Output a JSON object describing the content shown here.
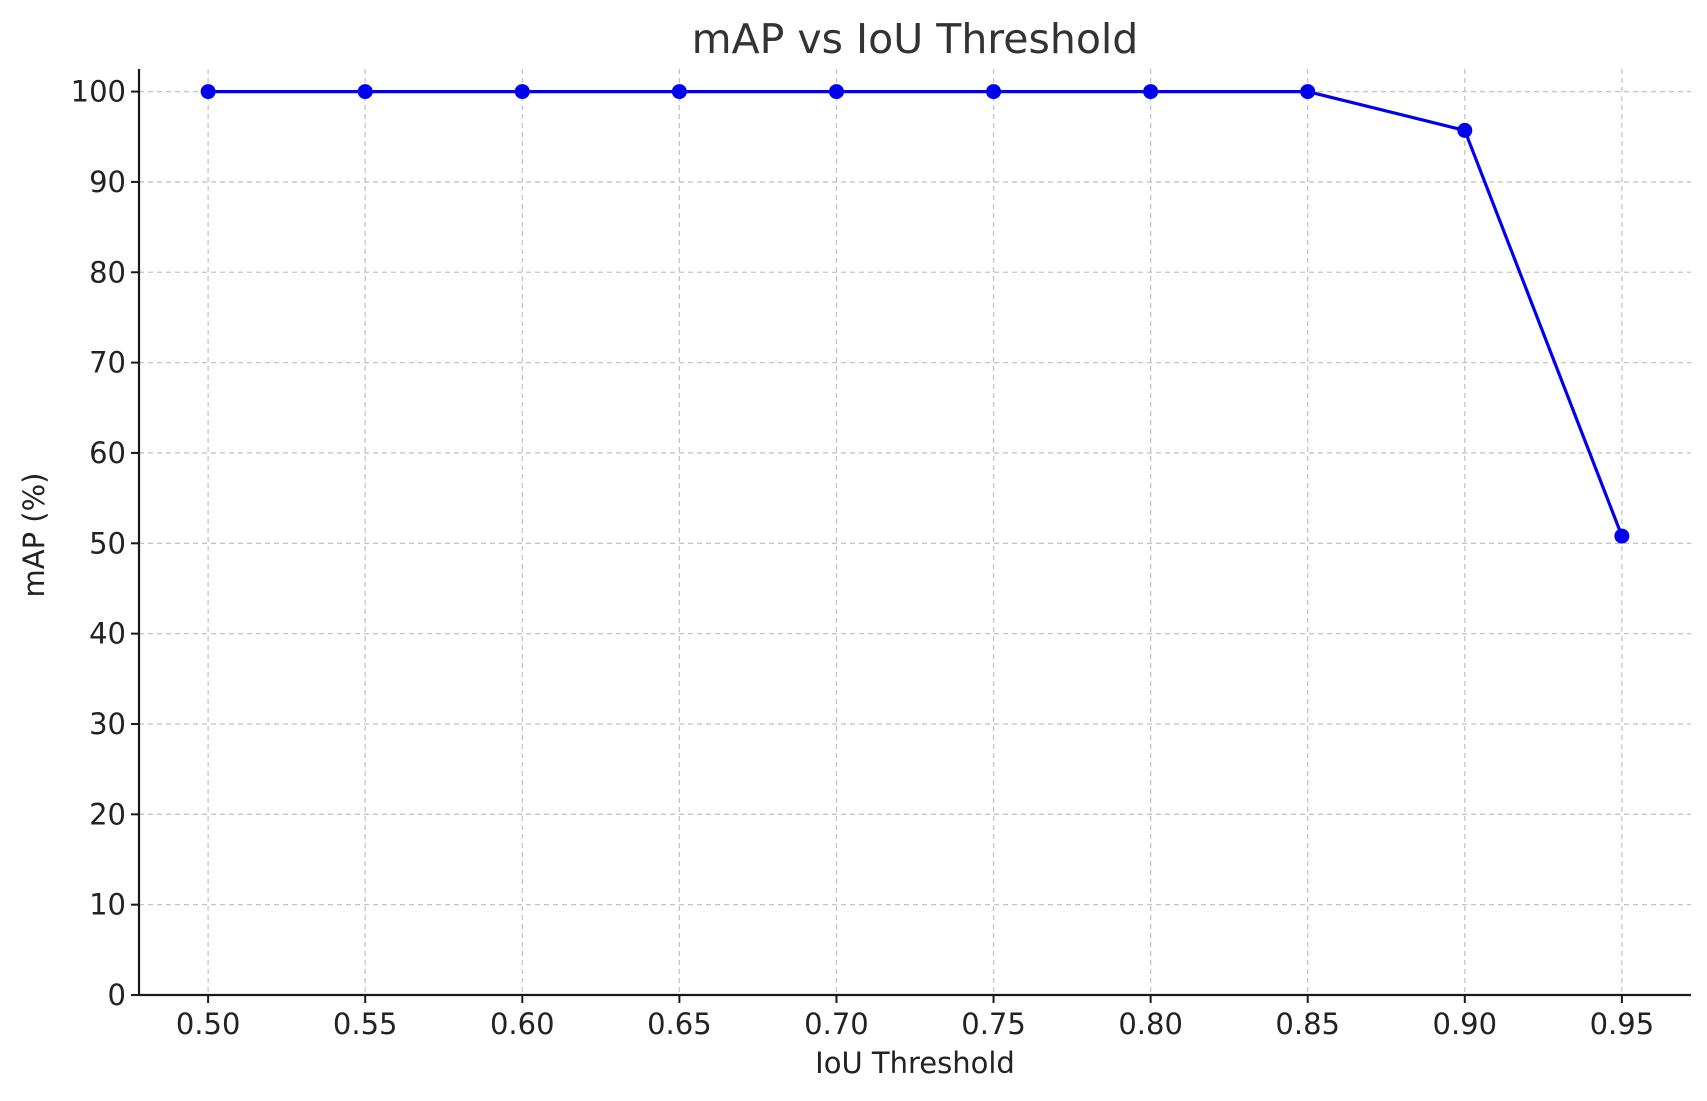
{
  "chart_data": {
    "type": "line",
    "title": "mAP vs IoU Threshold",
    "xlabel": "IoU Threshold",
    "ylabel": "mAP (%)",
    "x": [
      0.5,
      0.55,
      0.6,
      0.65,
      0.7,
      0.75,
      0.8,
      0.85,
      0.9,
      0.95
    ],
    "x_tick_labels": [
      "0.50",
      "0.55",
      "0.60",
      "0.65",
      "0.70",
      "0.75",
      "0.80",
      "0.85",
      "0.90",
      "0.95"
    ],
    "y_ticks": [
      0,
      10,
      20,
      30,
      40,
      50,
      60,
      70,
      80,
      90,
      100
    ],
    "y_tick_labels": [
      "0",
      "10",
      "20",
      "30",
      "40",
      "50",
      "60",
      "70",
      "80",
      "90",
      "100"
    ],
    "xlim": [
      0.478,
      0.972
    ],
    "ylim": [
      0,
      102.5
    ],
    "grid": true,
    "legend": "none",
    "series": [
      {
        "values": [
          100,
          100,
          100,
          100,
          100,
          100,
          100,
          100,
          95.7,
          50.8
        ],
        "color": "#0000ee",
        "marker": "circle"
      }
    ],
    "colors": {
      "line": "#0000ee",
      "grid": "#c4c4c4",
      "axis": "#1a1a1a",
      "text": "#222222"
    }
  }
}
